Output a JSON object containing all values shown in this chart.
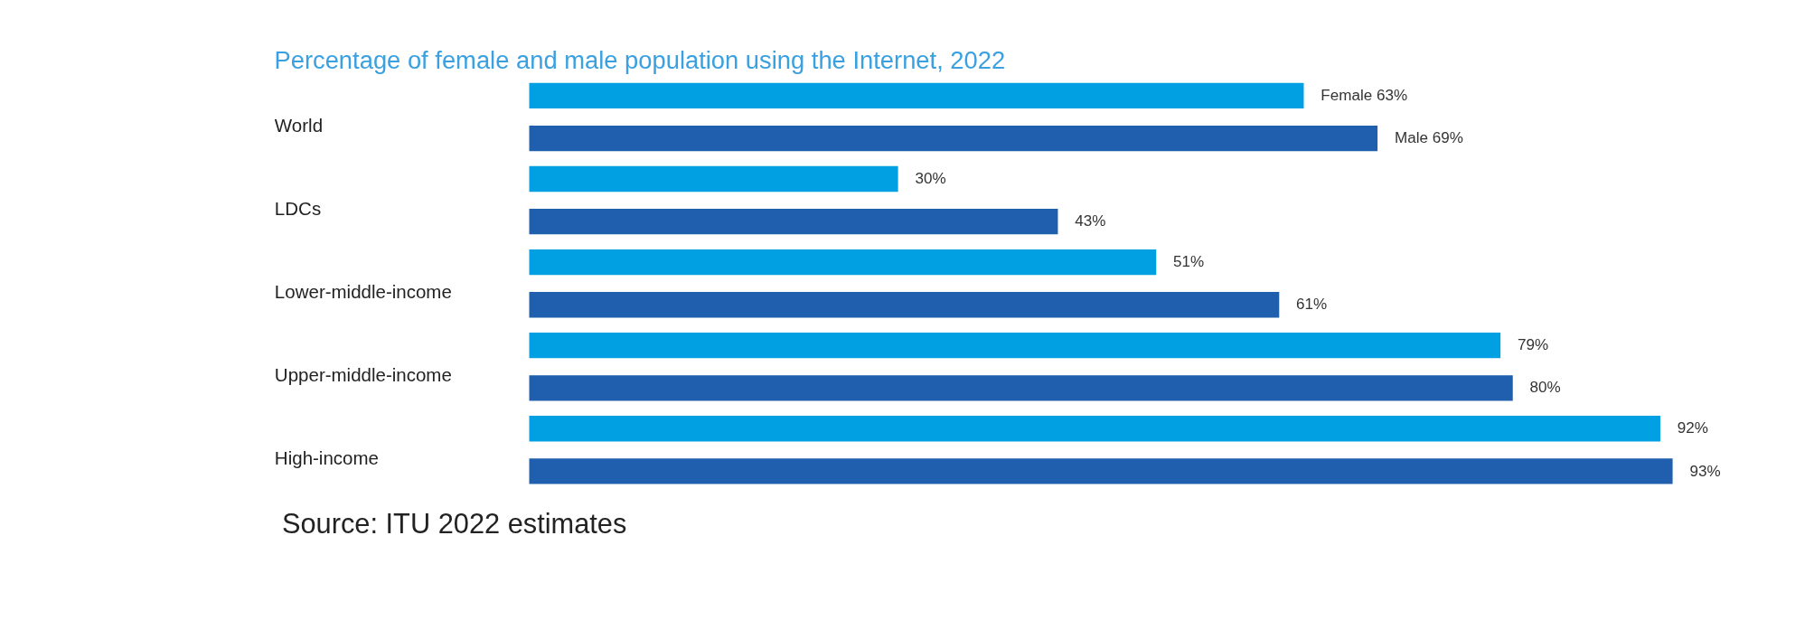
{
  "chart_data": {
    "type": "bar",
    "orientation": "horizontal",
    "title": "Percentage of female and male population using the Internet, 2022",
    "categories": [
      "World",
      "LDCs",
      "Lower-middle-income",
      "Upper-middle-income",
      "High-income"
    ],
    "series": [
      {
        "name": "Female",
        "color": "#00a0e3",
        "values": [
          63,
          30,
          51,
          79,
          92
        ],
        "value_labels": [
          "63%",
          "30%",
          "51%",
          "79%",
          "92%"
        ]
      },
      {
        "name": "Male",
        "color": "#1f5fad",
        "values": [
          69,
          43,
          61,
          80,
          93
        ],
        "value_labels": [
          "69%",
          "43%",
          "61%",
          "80%",
          "93%"
        ]
      }
    ],
    "annotations": [
      "Source: ITU 2022 estimates"
    ],
    "legend": false
  }
}
